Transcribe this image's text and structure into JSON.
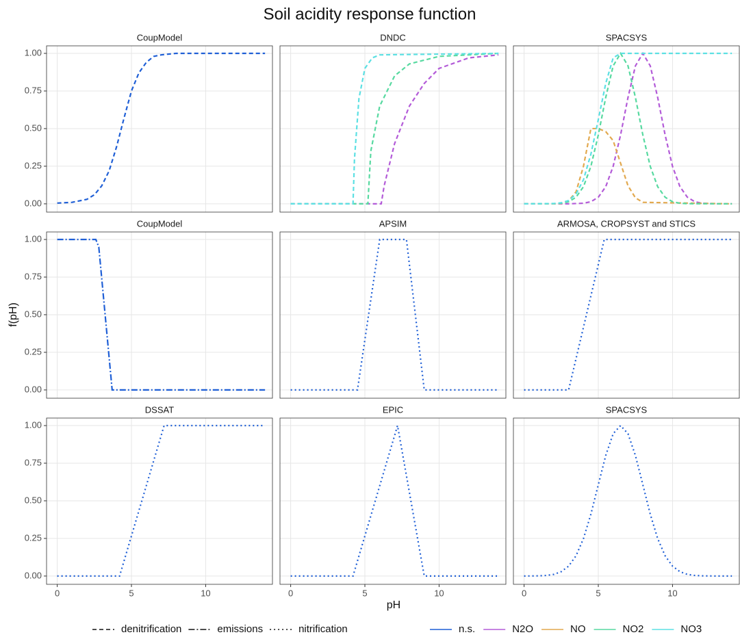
{
  "chart_data": {
    "type": "line",
    "title": "Soil acidity response function",
    "x_label": "pH",
    "y_label": "f(pH)",
    "xlim": [
      -0.72,
      14.5
    ],
    "ylim": [
      -0.055,
      1.05
    ],
    "xticks": [
      0,
      5,
      10
    ],
    "yticks": [
      {
        "value": 0,
        "label": "0.00"
      },
      {
        "value": 0.25,
        "label": "0.25"
      },
      {
        "value": 0.5,
        "label": "0.50"
      },
      {
        "value": 0.75,
        "label": "0.75"
      },
      {
        "value": 1,
        "label": "1.00"
      }
    ],
    "grid": true,
    "linetypes": [
      {
        "name": "denitrification",
        "dash": "6,4"
      },
      {
        "name": "emissions",
        "dash": "9,3,2,3"
      },
      {
        "name": "nitrification",
        "dash": "2,4"
      }
    ],
    "colors": [
      {
        "name": "n.s.",
        "color": "#1f5fd6"
      },
      {
        "name": "N2O",
        "color": "#b35bd8"
      },
      {
        "name": "NO",
        "color": "#e2a94f"
      },
      {
        "name": "NO2",
        "color": "#57d9a0"
      },
      {
        "name": "NO3",
        "color": "#5ce0e3"
      }
    ],
    "panels": [
      {
        "title": "CoupModel",
        "series": [
          {
            "name": "n.s.",
            "process": "denitrification",
            "x": [
              0,
              1,
              2,
              2.5,
              3,
              3.5,
              4,
              4.5,
              5,
              5.5,
              6,
              6.5,
              7,
              8,
              10,
              14
            ],
            "values": [
              0.005,
              0.01,
              0.03,
              0.06,
              0.12,
              0.22,
              0.38,
              0.57,
              0.75,
              0.87,
              0.94,
              0.98,
              0.99,
              1,
              1,
              1
            ]
          }
        ]
      },
      {
        "title": "DNDC",
        "series": [
          {
            "name": "N2O",
            "process": "denitrification",
            "x": [
              0,
              6.1,
              6.3,
              7,
              8,
              9,
              10,
              12,
              14
            ],
            "values": [
              0,
              0,
              0.12,
              0.4,
              0.65,
              0.8,
              0.9,
              0.97,
              0.99
            ]
          },
          {
            "name": "NO2",
            "process": "denitrification",
            "x": [
              0,
              5.2,
              5.4,
              6,
              7,
              8,
              10,
              14
            ],
            "values": [
              0,
              0,
              0.35,
              0.65,
              0.85,
              0.93,
              0.98,
              1
            ]
          },
          {
            "name": "NO3",
            "process": "denitrification",
            "x": [
              0,
              4.2,
              4.3,
              4.6,
              5,
              5.5,
              6,
              14
            ],
            "values": [
              0,
              0,
              0.3,
              0.7,
              0.9,
              0.97,
              0.99,
              1
            ]
          }
        ]
      },
      {
        "title": "SPACSYS",
        "series": [
          {
            "name": "N2O",
            "process": "denitrification",
            "x": [
              0,
              3,
              4,
              4.5,
              5,
              5.5,
              6,
              6.5,
              7,
              7.5,
              8,
              8.5,
              9,
              9.5,
              10,
              10.5,
              11,
              11.5,
              12,
              13,
              14
            ],
            "values": [
              0,
              0.0002,
              0.004,
              0.014,
              0.044,
              0.114,
              0.249,
              0.458,
              0.707,
              0.917,
              1,
              0.917,
              0.707,
              0.458,
              0.249,
              0.114,
              0.044,
              0.014,
              0.004,
              0.0002,
              0
            ]
          },
          {
            "name": "NO",
            "process": "denitrification",
            "x": [
              0,
              2,
              2.5,
              3,
              3.5,
              4,
              4.5,
              5,
              5.5,
              6,
              6.5,
              7,
              7.5,
              8,
              14
            ],
            "values": [
              0,
              0,
              0.003,
              0.02,
              0.08,
              0.25,
              0.5,
              0.5,
              0.48,
              0.42,
              0.27,
              0.12,
              0.04,
              0.01,
              0
            ]
          },
          {
            "name": "NO2",
            "process": "denitrification",
            "x": [
              0,
              2,
              2.5,
              3,
              3.5,
              4,
              4.5,
              5,
              5.5,
              6,
              6.5,
              7,
              7.5,
              8,
              8.5,
              9,
              9.5,
              10,
              10.5,
              11,
              14
            ],
            "values": [
              0,
              0.001,
              0.004,
              0.014,
              0.044,
              0.114,
              0.249,
              0.458,
              0.707,
              0.917,
              1,
              0.917,
              0.707,
              0.458,
              0.249,
              0.114,
              0.044,
              0.014,
              0.004,
              0.001,
              0
            ]
          },
          {
            "name": "NO3",
            "process": "denitrification",
            "x": [
              0,
              2,
              2.5,
              3,
              3.5,
              4,
              4.5,
              5,
              5.5,
              6,
              6.5,
              14
            ],
            "values": [
              0,
              0.002,
              0.007,
              0.022,
              0.066,
              0.16,
              0.33,
              0.56,
              0.8,
              0.97,
              1,
              1
            ]
          }
        ]
      },
      {
        "title": "CoupModel",
        "series": [
          {
            "name": "n.s.",
            "process": "emissions",
            "x": [
              0,
              2.6,
              2.8,
              3.7,
              14
            ],
            "values": [
              1,
              1,
              0.95,
              0,
              0
            ]
          }
        ]
      },
      {
        "title": "APSIM",
        "series": [
          {
            "name": "n.s.",
            "process": "nitrification",
            "x": [
              0,
              4.5,
              6,
              7.8,
              9,
              14
            ],
            "values": [
              0,
              0,
              1,
              1,
              0,
              0
            ]
          }
        ]
      },
      {
        "title": "ARMOSA, CROPSYST and STICS",
        "series": [
          {
            "name": "n.s.",
            "process": "nitrification",
            "x": [
              0,
              3,
              5.4,
              14
            ],
            "values": [
              0,
              0,
              1,
              1
            ]
          }
        ]
      },
      {
        "title": "DSSAT",
        "series": [
          {
            "name": "n.s.",
            "process": "nitrification",
            "x": [
              0,
              4.2,
              7.2,
              14
            ],
            "values": [
              0,
              0,
              1,
              1
            ]
          }
        ]
      },
      {
        "title": "EPIC",
        "series": [
          {
            "name": "n.s.",
            "process": "nitrification",
            "x": [
              0,
              4.2,
              7.2,
              9,
              14
            ],
            "values": [
              0,
              0,
              1,
              0,
              0
            ]
          }
        ]
      },
      {
        "title": "SPACSYS",
        "series": [
          {
            "name": "n.s.",
            "process": "nitrification",
            "x": [
              0,
              1,
              1.5,
              2,
              2.5,
              3,
              3.5,
              4,
              4.5,
              5,
              5.5,
              6,
              6.5,
              7,
              7.5,
              8,
              8.5,
              9,
              9.5,
              10,
              10.5,
              11,
              11.5,
              12,
              13,
              14
            ],
            "values": [
              0.0001,
              0.0012,
              0.004,
              0.011,
              0.029,
              0.066,
              0.135,
              0.249,
              0.411,
              0.607,
              0.801,
              0.946,
              1,
              0.946,
              0.801,
              0.607,
              0.411,
              0.249,
              0.135,
              0.066,
              0.029,
              0.011,
              0.004,
              0.0012,
              0,
              0
            ]
          }
        ]
      }
    ]
  }
}
